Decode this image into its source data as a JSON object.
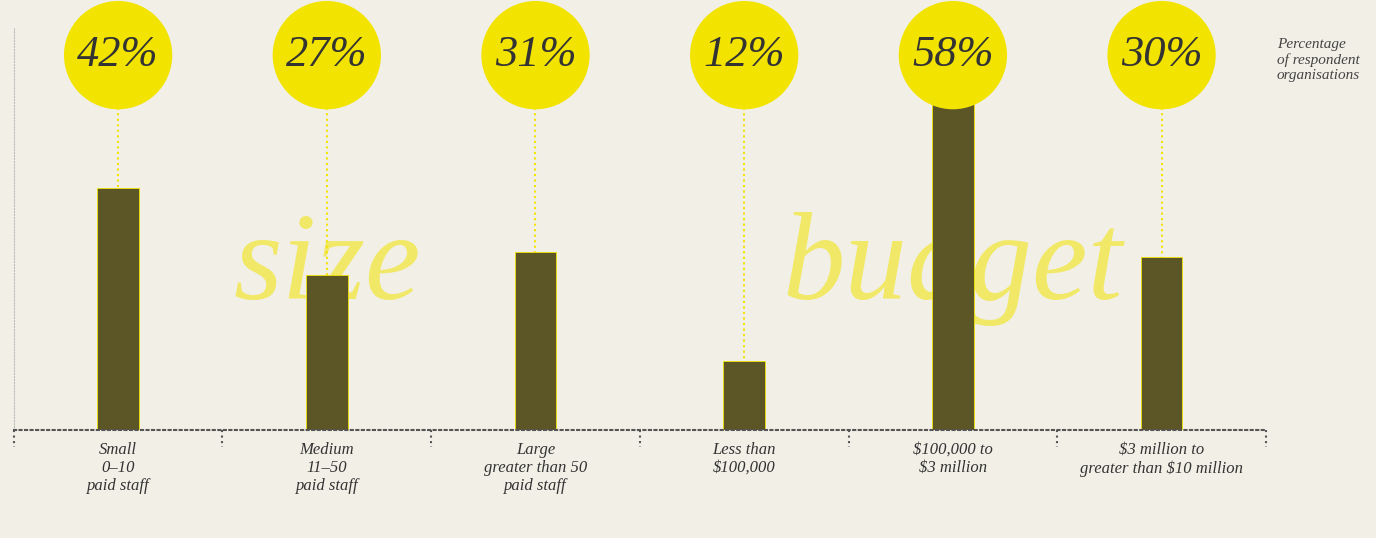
{
  "chart_data": {
    "type": "bar",
    "categories": [
      "Small\n0–10\npaid staff",
      "Medium\n11–50\npaid staff",
      "Large\ngreater than 50\npaid staff",
      "Less than\n$100,000",
      "$100,000 to\n$3 million",
      "$3 million to\ngreater than $10 million"
    ],
    "values": [
      42,
      27,
      31,
      12,
      58,
      30
    ],
    "value_labels": [
      "42%",
      "27%",
      "31%",
      "12%",
      "58%",
      "30%"
    ],
    "data_labels": true,
    "color": "#5c5626",
    "group_labels": [
      "size",
      "budget"
    ],
    "note": "Percentage\nof respondent\norganisations",
    "ylim": [
      0,
      70
    ],
    "yticks": [],
    "tick_labels": "x"
  }
}
